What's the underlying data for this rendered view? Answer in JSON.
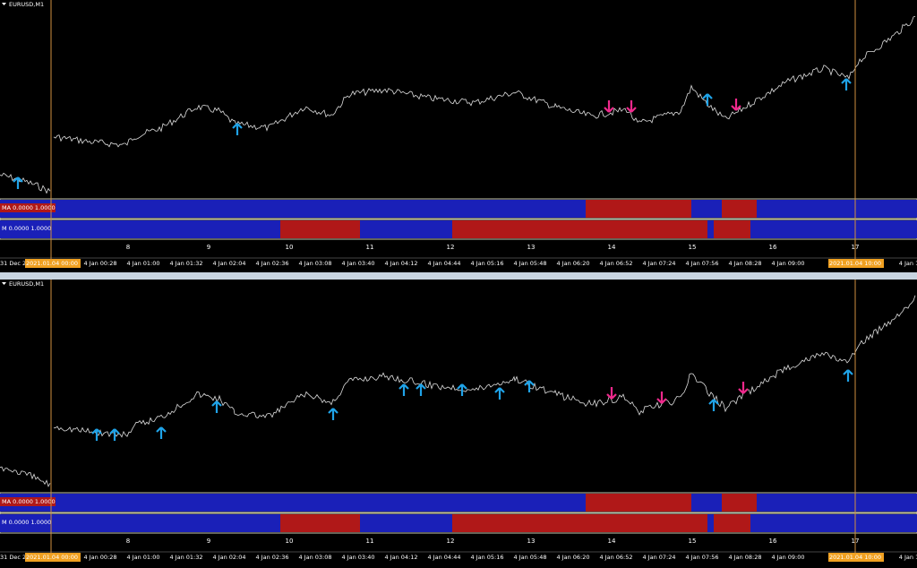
{
  "panels": [
    {
      "symbol": "EURUSD,M1",
      "indicators": [
        {
          "label": "MA 0.0000 1.0000"
        },
        {
          "label": "M 0.0000 1.0000"
        }
      ],
      "hours": [
        "8",
        "9",
        "10",
        "11",
        "12",
        "13",
        "14",
        "15",
        "16",
        "17"
      ],
      "time_labels": [
        "31 Dec 2",
        "2021.01.04 00:00",
        "4 Jan 00:28",
        "4 Jan 01:00",
        "4 Jan 01:32",
        "4 Jan 02:04",
        "4 Jan 02:36",
        "4 Jan 03:08",
        "4 Jan 03:40",
        "4 Jan 04:12",
        "4 Jan 04:44",
        "4 Jan 05:16",
        "4 Jan 05:48",
        "4 Jan 06:20",
        "4 Jan 06:52",
        "4 Jan 07:24",
        "4 Jan 07:56",
        "4 Jan 08:28",
        "4 Jan 09:00",
        "2021.01.04 10:00",
        "4 Jan 1"
      ]
    },
    {
      "symbol": "EURUSD,M1",
      "indicators": [
        {
          "label": "MA 0.0000 1.0000"
        },
        {
          "label": "M 0.0000 1.0000"
        }
      ],
      "hours": [
        "8",
        "9",
        "10",
        "11",
        "12",
        "13",
        "14",
        "15",
        "16",
        "17"
      ],
      "time_labels": [
        "31 Dec 2",
        "2021.01.04 00:00",
        "4 Jan 00:28",
        "4 Jan 01:00",
        "4 Jan 01:32",
        "4 Jan 02:04",
        "4 Jan 02:36",
        "4 Jan 03:08",
        "4 Jan 03:40",
        "4 Jan 04:12",
        "4 Jan 04:44",
        "4 Jan 05:16",
        "4 Jan 05:48",
        "4 Jan 06:20",
        "4 Jan 06:52",
        "4 Jan 07:24",
        "4 Jan 07:56",
        "4 Jan 08:28",
        "4 Jan 09:00",
        "2021.01.04 10:00",
        "4 Jan 1"
      ]
    }
  ]
}
